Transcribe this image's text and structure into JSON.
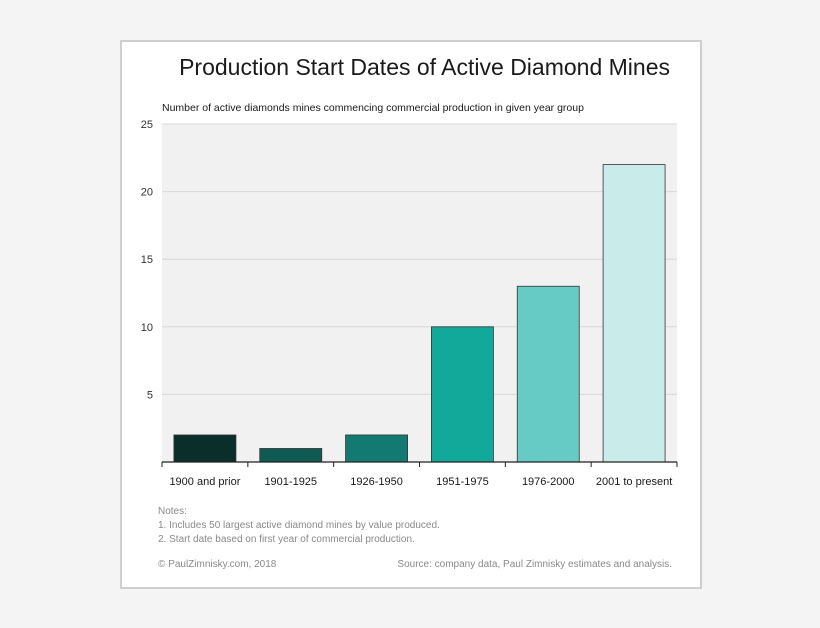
{
  "chart_data": {
    "type": "bar",
    "title": "Production Start Dates of Active Diamond Mines",
    "ylabel": "Number of active diamonds mines commencing commercial production in given year group",
    "categories": [
      "1900 and prior",
      "1901-1925",
      "1926-1950",
      "1951-1975",
      "1976-2000",
      "2001 to present"
    ],
    "values": [
      2,
      1,
      2,
      10,
      13,
      22
    ],
    "colors": [
      "#0a2e2a",
      "#0f5a52",
      "#137a72",
      "#12a89a",
      "#66cbc4",
      "#c9ecea"
    ],
    "ylim": [
      0,
      25
    ],
    "yticks": [
      5,
      10,
      15,
      20,
      25
    ],
    "grid": true
  },
  "notes": {
    "heading": "Notes:",
    "items": [
      "1. Includes 50 largest active diamond mines by value produced.",
      "2. Start date based on first year of commercial production."
    ]
  },
  "footer": {
    "copyright": "© PaulZimnisky.com, 2018",
    "source": "Source: company data, Paul Zimnisky estimates and analysis."
  }
}
